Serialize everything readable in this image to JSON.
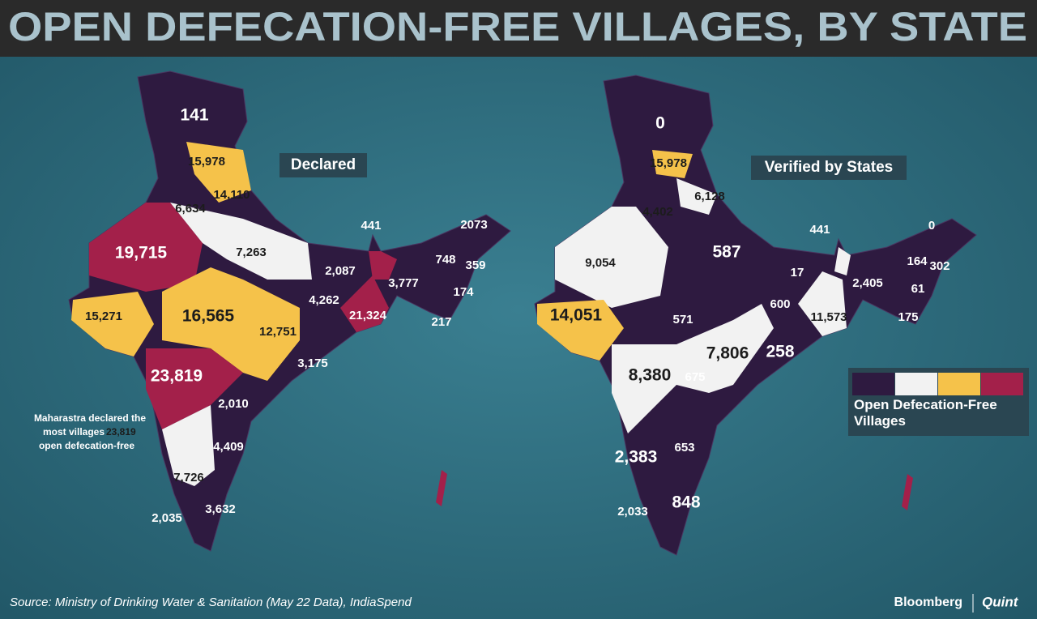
{
  "header": {
    "title": "OPEN DEFECATION-FREE VILLAGES, BY STATE"
  },
  "maps": [
    {
      "label": "Declared",
      "regions": [
        "141",
        "15,978",
        "14,110",
        "6,634",
        "441",
        "2073",
        "19,715",
        "7,263",
        "2,087",
        "748",
        "359",
        "3,777",
        "174",
        "4,262",
        "21,324",
        "15,271",
        "16,565",
        "12,751",
        "217",
        "3,175",
        "23,819",
        "2,010",
        "4,409",
        "7,726",
        "3,632",
        "2,035"
      ]
    },
    {
      "label": "Verified by States",
      "regions": [
        "0",
        "15,978",
        "6,128",
        "4,402",
        "441",
        "0",
        "9,054",
        "587",
        "17",
        "164",
        "302",
        "2,405",
        "61",
        "600",
        "11,573",
        "175",
        "571",
        "14,051",
        "7,806",
        "258",
        "8,380",
        "675",
        "653",
        "2,383",
        "848",
        "2,033"
      ]
    }
  ],
  "annotation": {
    "lines": [
      "Maharastra declared the",
      "most villages",
      "23,819",
      "open defecation-free"
    ]
  },
  "legend": {
    "title": "Open Defecation-Free Villages"
  },
  "source": "Source: Ministry of Drinking Water & Sanitation (May 22 Data), IndiaSpend",
  "brand": [
    "Bloomberg",
    "Quint"
  ]
}
